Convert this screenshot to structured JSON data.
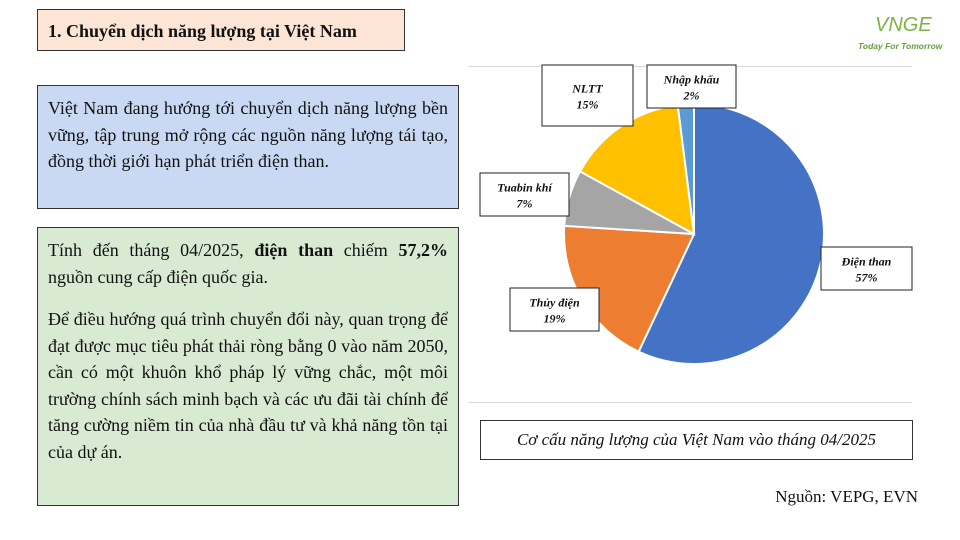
{
  "header": {
    "title": "1. Chuyển dịch năng lượng tại Việt Nam"
  },
  "logo": {
    "mark": "VNGE",
    "tagline": "Today For Tomorrow"
  },
  "intro": {
    "text": "Việt Nam đang hướng tới chuyển dịch năng lượng bền vững, tập trung mở rộng các nguồn năng lượng tái tạo, đồng thời giới hạn phát triển điện than."
  },
  "detail": {
    "p1_before": "Tính đến tháng 04/2025, ",
    "p1_bold1": "điện than",
    "p1_mid": " chiếm ",
    "p1_bold2": "57,2%",
    "p1_after": " nguồn cung cấp điện quốc gia.",
    "p2": "Để điều hướng quá trình chuyển đổi này, quan trọng để đạt được mục tiêu phát thải ròng bằng 0 vào năm 2050, cần có một khuôn khổ pháp lý vững chắc, một môi trường chính sách minh bạch và các ưu đãi tài chính để tăng cường niềm tin của nhà đầu tư và khả năng tồn tại của dự án."
  },
  "chart_data": {
    "type": "pie",
    "title": "",
    "categories": [
      "Điện than",
      "Thủy điện",
      "Tuabin khí",
      "NLTT",
      "Nhập khẩu"
    ],
    "values": [
      57,
      19,
      7,
      15,
      2
    ],
    "data_labels": [
      "57%",
      "19%",
      "7%",
      "15%",
      "2%"
    ],
    "colors": [
      "#4472c4",
      "#ed7d31",
      "#a5a5a5",
      "#ffc000",
      "#5b9bd5"
    ],
    "start_angle_deg": 0,
    "direction": "clockwise"
  },
  "caption": {
    "text": "Cơ cấu năng lượng của Việt Nam vào tháng 04/2025"
  },
  "source": {
    "text": "Nguồn: VEPG, EVN"
  }
}
